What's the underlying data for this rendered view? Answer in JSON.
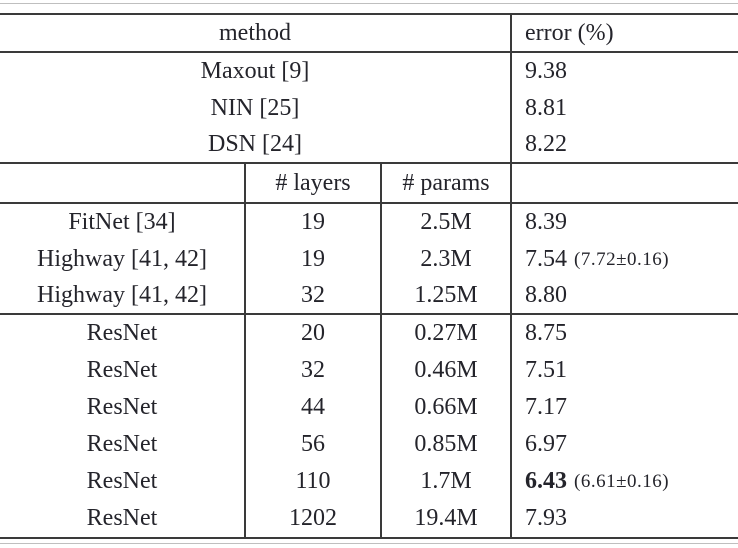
{
  "colors": {
    "background": "#ffffff",
    "text": "#24242b",
    "rule_dark": "#3a3a3a",
    "rule_light": "#bfbfbf"
  },
  "table": {
    "header": {
      "method": "method",
      "error": "error (%)"
    },
    "subheader": {
      "layers": "# layers",
      "params": "# params"
    },
    "baseline_rows": [
      {
        "method": "Maxout [9]",
        "error": "9.38"
      },
      {
        "method": "NIN [25]",
        "error": "8.81"
      },
      {
        "method": "DSN [24]",
        "error": "8.22"
      }
    ],
    "comparison_rows": [
      {
        "method": "FitNet [34]",
        "layers": "19",
        "params": "2.5M",
        "error": "8.39",
        "error_note": "",
        "best": false
      },
      {
        "method": "Highway [41, 42]",
        "layers": "19",
        "params": "2.3M",
        "error": "7.54",
        "error_note": "(7.72±0.16)",
        "best": false
      },
      {
        "method": "Highway [41, 42]",
        "layers": "32",
        "params": "1.25M",
        "error": "8.80",
        "error_note": "",
        "best": false
      }
    ],
    "resnet_rows": [
      {
        "method": "ResNet",
        "layers": "20",
        "params": "0.27M",
        "error": "8.75",
        "error_note": "",
        "best": false
      },
      {
        "method": "ResNet",
        "layers": "32",
        "params": "0.46M",
        "error": "7.51",
        "error_note": "",
        "best": false
      },
      {
        "method": "ResNet",
        "layers": "44",
        "params": "0.66M",
        "error": "7.17",
        "error_note": "",
        "best": false
      },
      {
        "method": "ResNet",
        "layers": "56",
        "params": "0.85M",
        "error": "6.97",
        "error_note": "",
        "best": false
      },
      {
        "method": "ResNet",
        "layers": "110",
        "params": "1.7M",
        "error": "6.43",
        "error_note": "(6.61±0.16)",
        "best": true
      },
      {
        "method": "ResNet",
        "layers": "1202",
        "params": "19.4M",
        "error": "7.93",
        "error_note": "",
        "best": false
      }
    ]
  }
}
